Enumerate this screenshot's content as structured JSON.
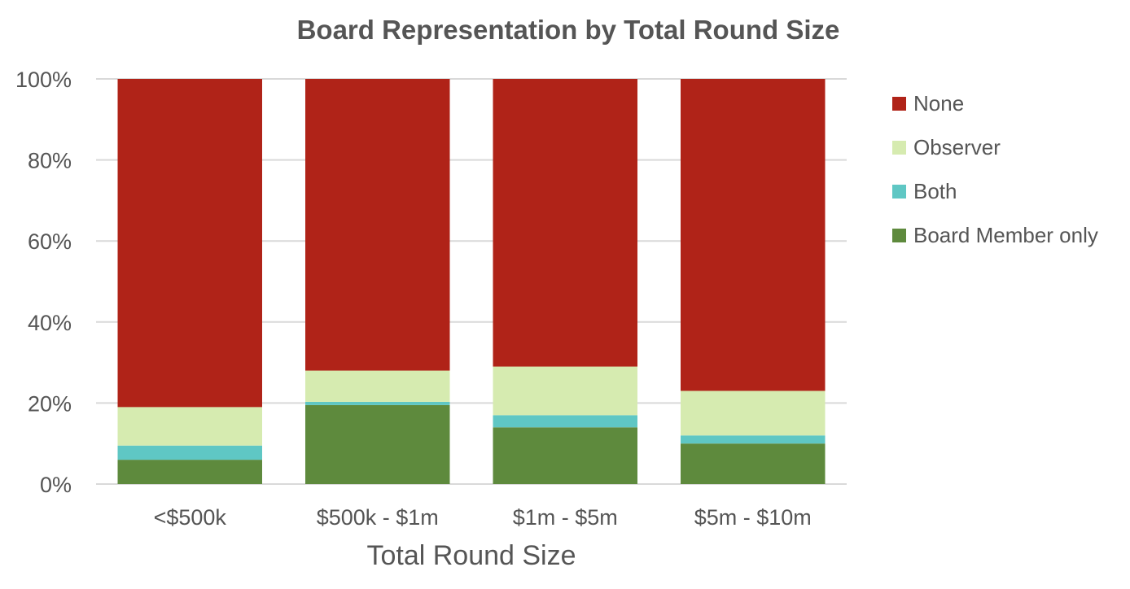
{
  "chart_data": {
    "type": "bar",
    "stacked": true,
    "title": "Board Representation by Total Round Size",
    "xlabel": "Total Round Size",
    "ylabel": "",
    "ylim": [
      0,
      100
    ],
    "yticks": [
      "0%",
      "20%",
      "40%",
      "60%",
      "80%",
      "100%"
    ],
    "grid": true,
    "legend_position": "right",
    "categories": [
      "<$500k",
      "$500k - $1m",
      "$1m - $5m",
      "$5m - $10m"
    ],
    "series": [
      {
        "name": "Board Member only",
        "color": "#5e8a3d",
        "values": [
          6,
          19.5,
          14,
          10
        ]
      },
      {
        "name": "Both",
        "color": "#5fc7c4",
        "values": [
          3.5,
          0.8,
          3,
          2
        ]
      },
      {
        "name": "Observer",
        "color": "#d6ebb0",
        "values": [
          9.5,
          7.7,
          12,
          11
        ]
      },
      {
        "name": "None",
        "color": "#b02318",
        "values": [
          81,
          72,
          71,
          77
        ]
      }
    ]
  }
}
